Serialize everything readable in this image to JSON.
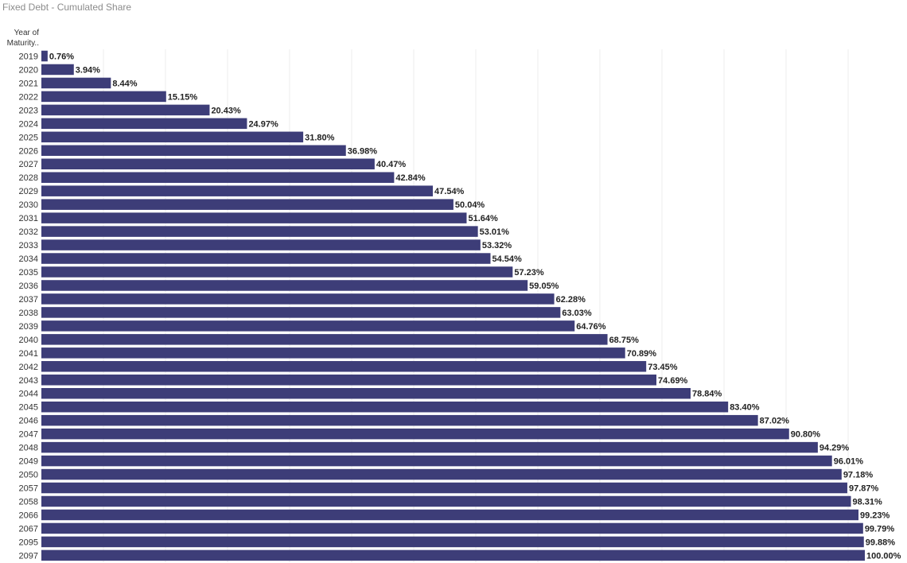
{
  "title": "Fixed Debt - Cumulated Share",
  "row_header": [
    "Year of",
    "Maturity.."
  ],
  "colors": {
    "bar": "#3d3d78",
    "gridline": "#ececec",
    "title": "#8c8c8c"
  },
  "chart_data": {
    "type": "bar",
    "orientation": "horizontal",
    "title": "Fixed Debt - Cumulated Share",
    "ylabel": "Year of Maturity..",
    "xlim": [
      0,
      100
    ],
    "grid": true,
    "categories": [
      "2019",
      "2020",
      "2021",
      "2022",
      "2023",
      "2024",
      "2025",
      "2026",
      "2027",
      "2028",
      "2029",
      "2030",
      "2031",
      "2032",
      "2033",
      "2034",
      "2035",
      "2036",
      "2037",
      "2038",
      "2039",
      "2040",
      "2041",
      "2042",
      "2043",
      "2044",
      "2045",
      "2046",
      "2047",
      "2048",
      "2049",
      "2050",
      "2057",
      "2058",
      "2066",
      "2067",
      "2095",
      "2097"
    ],
    "values": [
      0.76,
      3.94,
      8.44,
      15.15,
      20.43,
      24.97,
      31.8,
      36.98,
      40.47,
      42.84,
      47.54,
      50.04,
      51.64,
      53.01,
      53.32,
      54.54,
      57.23,
      59.05,
      62.28,
      63.03,
      64.76,
      68.75,
      70.89,
      73.45,
      74.69,
      78.84,
      83.4,
      87.02,
      90.8,
      94.29,
      96.01,
      97.18,
      97.87,
      98.31,
      99.23,
      99.79,
      99.88,
      100.0
    ],
    "labels": [
      "0.76%",
      "3.94%",
      "8.44%",
      "15.15%",
      "20.43%",
      "24.97%",
      "31.80%",
      "36.98%",
      "40.47%",
      "42.84%",
      "47.54%",
      "50.04%",
      "51.64%",
      "53.01%",
      "53.32%",
      "54.54%",
      "57.23%",
      "59.05%",
      "62.28%",
      "63.03%",
      "64.76%",
      "68.75%",
      "70.89%",
      "73.45%",
      "74.69%",
      "78.84%",
      "83.40%",
      "87.02%",
      "90.80%",
      "94.29%",
      "96.01%",
      "97.18%",
      "97.87%",
      "98.31%",
      "99.23%",
      "99.79%",
      "99.88%",
      "100.00%"
    ]
  }
}
